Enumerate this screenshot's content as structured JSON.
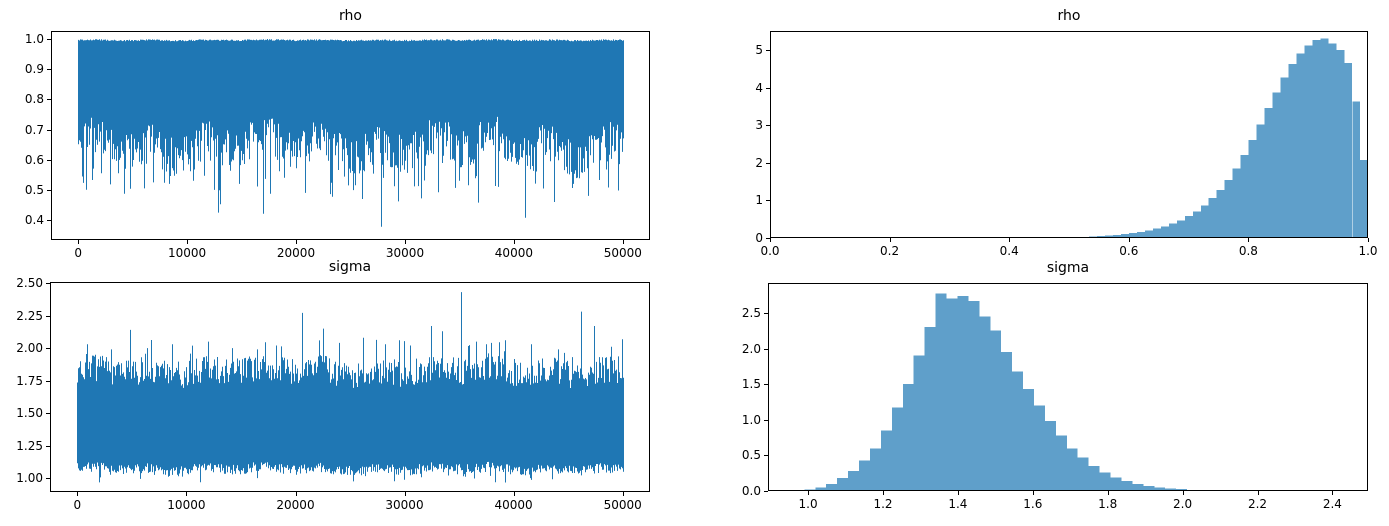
{
  "figure_title": "",
  "colors": {
    "trace": "#1f77b4",
    "hist_fill": "#5f9fca",
    "spine": "#000000",
    "text": "#000000",
    "background": "#ffffff"
  },
  "chart_data": [
    {
      "id": "rho-trace",
      "type": "line",
      "title": "rho",
      "xlim": [
        -2500,
        52500
      ],
      "ylim": [
        0.334,
        1.0265
      ],
      "xticks": [
        0,
        10000,
        20000,
        30000,
        40000,
        50000
      ],
      "xtick_labels": [
        "0",
        "10000",
        "20000",
        "30000",
        "40000",
        "50000"
      ],
      "yticks": [
        0.4,
        0.5,
        0.6,
        0.7,
        0.8,
        0.9,
        1.0
      ],
      "ytick_labels": [
        "0.4",
        "0.5",
        "0.6",
        "0.7",
        "0.8",
        "0.9",
        "1.0"
      ],
      "x_range": [
        0,
        50000
      ],
      "n_samples": 50000,
      "min": 0.378,
      "max": 1.0,
      "seed": 42,
      "envelope": {
        "upper": {
          "base": [
            0.9935,
            0.9985
          ],
          "wave_amp": 0.001
        },
        "lower": {
          "base": [
            0.575,
            0.71
          ],
          "wave_amp": 0.025,
          "spike_prob": 0.1,
          "spike_range": [
            0.495,
            0.6
          ],
          "spike2_prob": 0.008,
          "spike2_range": [
            0.42,
            0.5
          ]
        }
      },
      "notable_dips": [
        {
          "x": 2100,
          "y": 0.555
        },
        {
          "x": 4200,
          "y": 0.487
        },
        {
          "x": 6900,
          "y": 0.525
        },
        {
          "x": 8300,
          "y": 0.52
        },
        {
          "x": 10500,
          "y": 0.53
        },
        {
          "x": 12500,
          "y": 0.5
        },
        {
          "x": 14800,
          "y": 0.52
        },
        {
          "x": 17000,
          "y": 0.421
        },
        {
          "x": 18900,
          "y": 0.54
        },
        {
          "x": 20800,
          "y": 0.49
        },
        {
          "x": 23300,
          "y": 0.477
        },
        {
          "x": 24800,
          "y": 0.515
        },
        {
          "x": 26100,
          "y": 0.47
        },
        {
          "x": 27800,
          "y": 0.378
        },
        {
          "x": 29400,
          "y": 0.462
        },
        {
          "x": 31500,
          "y": 0.472
        },
        {
          "x": 33000,
          "y": 0.492
        },
        {
          "x": 35000,
          "y": 0.53
        },
        {
          "x": 36700,
          "y": 0.458
        },
        {
          "x": 38500,
          "y": 0.51
        },
        {
          "x": 41000,
          "y": 0.408
        },
        {
          "x": 43700,
          "y": 0.46
        },
        {
          "x": 45400,
          "y": 0.52
        },
        {
          "x": 46800,
          "y": 0.48
        },
        {
          "x": 48600,
          "y": 0.508
        }
      ]
    },
    {
      "id": "rho-hist",
      "type": "histogram",
      "title": "rho",
      "density": true,
      "xlim": [
        0.0,
        1.0
      ],
      "ylim": [
        0,
        5.5
      ],
      "xticks": [
        0.0,
        0.2,
        0.4,
        0.6,
        0.8,
        1.0
      ],
      "xtick_labels": [
        "0.0",
        "0.2",
        "0.4",
        "0.6",
        "0.8",
        "1.0"
      ],
      "yticks": [
        0,
        1,
        2,
        3,
        4,
        5
      ],
      "ytick_labels": [
        "0",
        "1",
        "2",
        "3",
        "4",
        "5"
      ],
      "bin_start": 0.507,
      "bin_width": 0.013333,
      "bin_heights": [
        0.02,
        0.03,
        0.04,
        0.05,
        0.06,
        0.08,
        0.1,
        0.13,
        0.16,
        0.2,
        0.25,
        0.31,
        0.38,
        0.47,
        0.58,
        0.71,
        0.87,
        1.06,
        1.28,
        1.54,
        1.85,
        2.2,
        2.6,
        3.02,
        3.45,
        3.87,
        4.27,
        4.62,
        4.9,
        5.12,
        5.26,
        5.3,
        5.17,
        5.0,
        4.65,
        3.63,
        2.07
      ],
      "peak": {
        "x": 0.927,
        "height": 5.3
      }
    },
    {
      "id": "sigma-trace",
      "type": "line",
      "title": "sigma",
      "xlim": [
        -2500,
        52500
      ],
      "ylim": [
        0.893,
        2.508
      ],
      "xticks": [
        0,
        10000,
        20000,
        30000,
        40000,
        50000
      ],
      "xtick_labels": [
        "0",
        "10000",
        "20000",
        "30000",
        "40000",
        "50000"
      ],
      "yticks": [
        1.0,
        1.25,
        1.5,
        1.75,
        2.0,
        2.25,
        2.5
      ],
      "ytick_labels": [
        "1.00",
        "1.25",
        "1.50",
        "1.75",
        "2.00",
        "2.25",
        "2.50"
      ],
      "x_range": [
        0,
        50000
      ],
      "n_samples": 50000,
      "min": 0.965,
      "max": 2.43,
      "seed": 7,
      "envelope": {
        "upper": {
          "base": [
            1.72,
            1.93
          ],
          "wave_amp": 0.02,
          "spike_prob": 0.05,
          "spike_range": [
            1.93,
            2.07
          ]
        },
        "lower": {
          "base": [
            1.03,
            1.11
          ],
          "wave_amp": 0.01,
          "spike_prob": 0.06,
          "spike_range": [
            0.965,
            1.03
          ]
        }
      },
      "notable_spikes": [
        {
          "x": 900,
          "y": 2.03
        },
        {
          "x": 3100,
          "y": 1.99
        },
        {
          "x": 4800,
          "y": 2.14
        },
        {
          "x": 6400,
          "y": 2.0
        },
        {
          "x": 8700,
          "y": 2.03
        },
        {
          "x": 12000,
          "y": 2.05
        },
        {
          "x": 14200,
          "y": 2.0
        },
        {
          "x": 16500,
          "y": 1.99
        },
        {
          "x": 18200,
          "y": 2.02
        },
        {
          "x": 20600,
          "y": 2.27
        },
        {
          "x": 22500,
          "y": 2.15
        },
        {
          "x": 24000,
          "y": 2.04
        },
        {
          "x": 26200,
          "y": 2.08
        },
        {
          "x": 28200,
          "y": 2.03
        },
        {
          "x": 30500,
          "y": 2.02
        },
        {
          "x": 32400,
          "y": 2.17
        },
        {
          "x": 33400,
          "y": 2.13
        },
        {
          "x": 35200,
          "y": 2.43
        },
        {
          "x": 37500,
          "y": 2.03
        },
        {
          "x": 39200,
          "y": 2.06
        },
        {
          "x": 41600,
          "y": 2.03
        },
        {
          "x": 44100,
          "y": 1.99
        },
        {
          "x": 46200,
          "y": 2.28
        },
        {
          "x": 47400,
          "y": 2.17
        },
        {
          "x": 48900,
          "y": 2.01
        }
      ]
    },
    {
      "id": "sigma-hist",
      "type": "histogram",
      "title": "sigma",
      "density": true,
      "xlim": [
        0.893,
        2.495
      ],
      "ylim": [
        0,
        2.92
      ],
      "xticks": [
        1.0,
        1.2,
        1.4,
        1.6,
        1.8,
        2.0,
        2.2,
        2.4
      ],
      "xtick_labels": [
        "1.0",
        "1.2",
        "1.4",
        "1.6",
        "1.8",
        "2.0",
        "2.2",
        "2.4"
      ],
      "yticks": [
        0.0,
        0.5,
        1.0,
        1.5,
        2.0,
        2.5
      ],
      "ytick_labels": [
        "0.0",
        "0.5",
        "1.0",
        "1.5",
        "2.0",
        "2.5"
      ],
      "bin_start": 0.99,
      "bin_width": 0.0292,
      "bin_heights": [
        0.02,
        0.05,
        0.1,
        0.18,
        0.28,
        0.43,
        0.6,
        0.85,
        1.17,
        1.5,
        1.9,
        2.3,
        2.77,
        2.7,
        2.74,
        2.67,
        2.45,
        2.25,
        1.95,
        1.68,
        1.43,
        1.2,
        0.98,
        0.78,
        0.6,
        0.47,
        0.35,
        0.26,
        0.19,
        0.14,
        0.1,
        0.07,
        0.05,
        0.035,
        0.025,
        0.015,
        0.01
      ],
      "peak": {
        "x": 1.355,
        "height": 2.77
      }
    }
  ]
}
